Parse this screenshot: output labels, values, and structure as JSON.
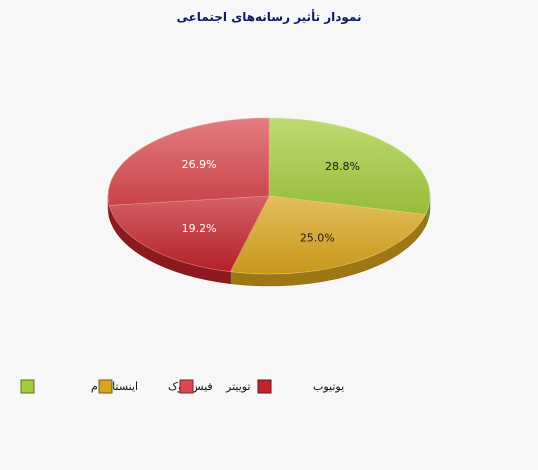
{
  "chart_data": {
    "type": "pie",
    "title": "نمودار تأثیر رسانه‌های اجتماعی",
    "slices": [
      {
        "label": "اینستاگرام",
        "value": 28.8,
        "value_label": "28.8%",
        "color": "#a4cc3c"
      },
      {
        "label": "فیس بوک",
        "value": 25.0,
        "value_label": "25.0%",
        "color": "#d9a51c"
      },
      {
        "label": "یوتیوب",
        "value": 19.2,
        "value_label": "19.2%",
        "color": "#c3232a"
      },
      {
        "label": "توییتر",
        "value": 26.9,
        "value_label": "26.9%",
        "color": "#d9494f"
      }
    ],
    "legend": {
      "position": "bottom",
      "order": [
        "اینستاگرام",
        "فیس بوک",
        "توییتر",
        "یوتیوب"
      ]
    },
    "style": "3d"
  }
}
